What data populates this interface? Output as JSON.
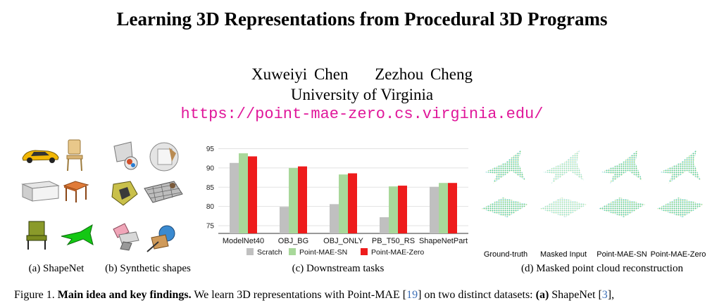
{
  "paper": {
    "title": "Learning 3D Representations from Procedural 3D Programs",
    "authors": [
      "Xuweiyi Chen",
      "Zezhou Cheng"
    ],
    "affiliation": "University of Virginia",
    "url": "https://point-mae-zero.cs.virginia.edu/"
  },
  "panels": {
    "a": "(a) ShapeNet",
    "b": "(b) Synthetic shapes",
    "c": "(c) Downstream tasks",
    "d": "(d) Masked point cloud reconstruction"
  },
  "reconstruction_labels": [
    "Ground-truth",
    "Masked Input",
    "Point-MAE-SN",
    "Point-MAE-Zero"
  ],
  "figure_caption": {
    "label": "Figure 1.",
    "bold": "Main idea and key findings.",
    "text_1": "We learn 3D representations with Point-MAE [",
    "ref_1": "19",
    "text_2": "] on two distinct datasets:",
    "bold_2": "(a)",
    "text_3": "ShapeNet [",
    "ref_2": "3",
    "text_4": "],"
  },
  "colors": {
    "scratch": "#c0c0c0",
    "sn": "#a8d89a",
    "zero": "#ee1c1c",
    "url": "#e0179a"
  },
  "chart_data": {
    "type": "bar",
    "categories": [
      "ModelNet40",
      "OBJ_BG",
      "OBJ_ONLY",
      "PB_T50_RS",
      "ShapeNetPart"
    ],
    "series": [
      {
        "name": "Scratch",
        "values": [
          91.3,
          79.9,
          80.6,
          77.2,
          85.1
        ]
      },
      {
        "name": "Point-MAE-SN",
        "values": [
          93.8,
          90.0,
          88.3,
          85.2,
          86.1
        ]
      },
      {
        "name": "Point-MAE-Zero",
        "values": [
          93.0,
          90.4,
          88.6,
          85.4,
          86.1
        ]
      }
    ],
    "yticks": [
      75,
      80,
      85,
      90,
      95
    ],
    "ylim": [
      73,
      96
    ],
    "grid": true,
    "legend": "bottom"
  }
}
